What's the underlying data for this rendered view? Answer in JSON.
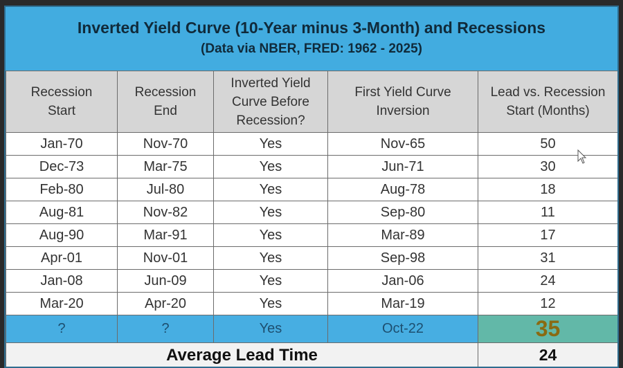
{
  "title": "Inverted Yield Curve (10-Year minus 3-Month) and Recessions",
  "subtitle": "(Data via NBER, FRED: 1962 - 2025)",
  "headers": {
    "recession_start": [
      "Recession",
      "Start"
    ],
    "recession_end": [
      "Recession",
      "End"
    ],
    "inverted": [
      "Inverted Yield",
      "Curve Before",
      "Recession?"
    ],
    "first_inversion": [
      "First Yield Curve",
      "Inversion"
    ],
    "lead": [
      "Lead vs. Recession",
      "Start (Months)"
    ]
  },
  "rows": [
    {
      "start": "Jan-70",
      "end": "Nov-70",
      "inverted": "Yes",
      "first": "Nov-65",
      "lead": "50"
    },
    {
      "start": "Dec-73",
      "end": "Mar-75",
      "inverted": "Yes",
      "first": "Jun-71",
      "lead": "30"
    },
    {
      "start": "Feb-80",
      "end": "Jul-80",
      "inverted": "Yes",
      "first": "Aug-78",
      "lead": "18"
    },
    {
      "start": "Aug-81",
      "end": "Nov-82",
      "inverted": "Yes",
      "first": "Sep-80",
      "lead": "11"
    },
    {
      "start": "Aug-90",
      "end": "Mar-91",
      "inverted": "Yes",
      "first": "Mar-89",
      "lead": "17"
    },
    {
      "start": "Apr-01",
      "end": "Nov-01",
      "inverted": "Yes",
      "first": "Sep-98",
      "lead": "31"
    },
    {
      "start": "Jan-08",
      "end": "Jun-09",
      "inverted": "Yes",
      "first": "Jan-06",
      "lead": "24"
    },
    {
      "start": "Mar-20",
      "end": "Apr-20",
      "inverted": "Yes",
      "first": "Mar-19",
      "lead": "12"
    }
  ],
  "prediction": {
    "start": "?",
    "end": "?",
    "inverted": "Yes",
    "first": "Oct-22",
    "lead": "35"
  },
  "average": {
    "label": "Average Lead Time",
    "value": "24"
  },
  "colors": {
    "title_bg": "#42ace0",
    "prediction_bg": "#47aee2",
    "highlight_bg": "#62b8a8",
    "highlight_text": "#8a6a12"
  },
  "icons": {
    "cursor": "mouse-pointer-icon"
  }
}
